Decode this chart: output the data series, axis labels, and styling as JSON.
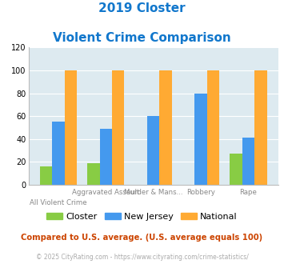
{
  "title_line1": "2019 Closter",
  "title_line2": "Violent Crime Comparison",
  "categories": [
    "All Violent Crime",
    "Aggravated Assault",
    "Murder & Mans...",
    "Robbery",
    "Rape"
  ],
  "closter": [
    16,
    19,
    0,
    0,
    27
  ],
  "new_jersey": [
    55,
    49,
    60,
    80,
    41
  ],
  "national": [
    100,
    100,
    100,
    100,
    100
  ],
  "closter_color": "#88cc44",
  "nj_color": "#4499ee",
  "national_color": "#ffaa33",
  "bg_color": "#ddeaf0",
  "title_color": "#1177cc",
  "ylim": [
    0,
    120
  ],
  "yticks": [
    0,
    20,
    40,
    60,
    80,
    100,
    120
  ],
  "note": "Compared to U.S. average. (U.S. average equals 100)",
  "copyright": "© 2025 CityRating.com - https://www.cityrating.com/crime-statistics/",
  "note_color": "#cc4400",
  "copyright_color": "#aaaaaa",
  "x_top_labels": [
    "",
    "Aggravated Assault",
    "Murder & Mans...",
    "Robbery",
    "Rape"
  ],
  "x_bot_labels": [
    "All Violent Crime",
    "",
    "",
    "",
    ""
  ]
}
